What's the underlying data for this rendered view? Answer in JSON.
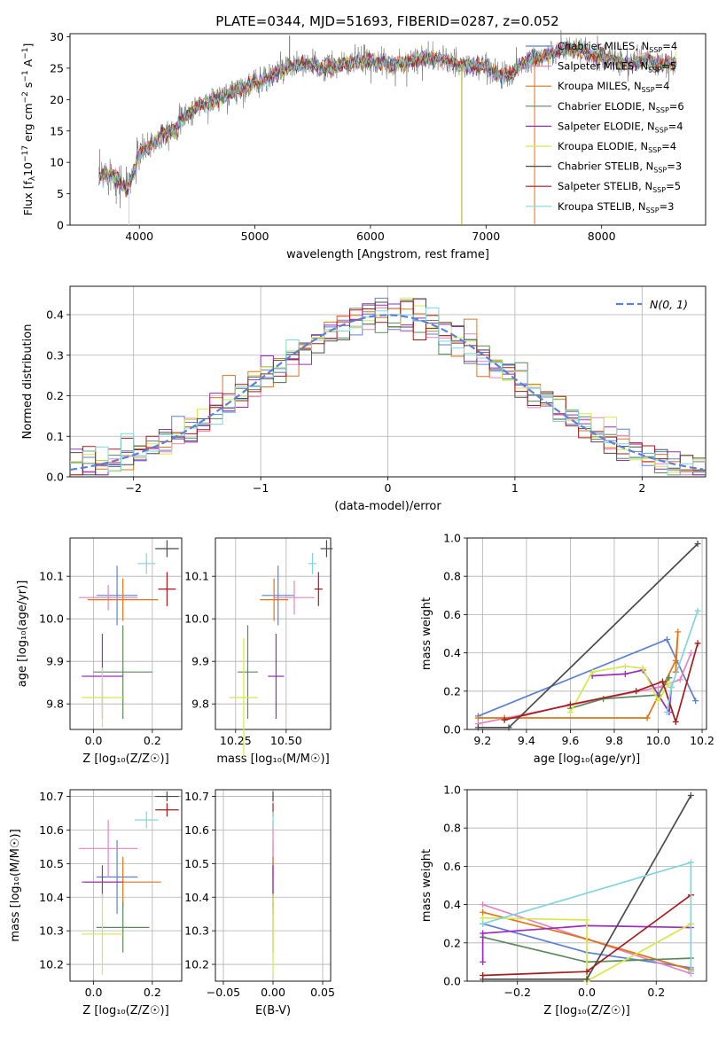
{
  "figure_title": "PLATE=0344, MJD=51693, FIBERID=0287, z=0.052",
  "colors": {
    "Chabrier MILES": "#5b80d8",
    "Salpeter MILES": "#e683c2",
    "Kroupa MILES": "#e07416",
    "Chabrier ELODIE": "#5a8a5a",
    "Salpeter ELODIE": "#9a2cbf",
    "Kroupa ELODIE": "#d4e84a",
    "Chabrier STELIB": "#4a4a4a",
    "Salpeter STELIB": "#aa1a1a",
    "Kroupa STELIB": "#7fd6de",
    "gaussian": "#5b80d8"
  },
  "chart_data": [
    {
      "id": "spectrum",
      "type": "line",
      "title": "",
      "xlabel": "wavelength [Angstrom, rest frame]",
      "ylabel_parts": [
        "Flux [f",
        "λ",
        "10",
        "−17",
        " erg cm",
        "−2",
        " s",
        "−1",
        " A",
        "−1",
        "]"
      ],
      "xlim": [
        3400,
        8900
      ],
      "ylim": [
        0,
        30.5
      ],
      "xticks": [
        4000,
        5000,
        6000,
        7000,
        8000
      ],
      "yticks": [
        0,
        5,
        10,
        15,
        20,
        25,
        30
      ],
      "grid": false,
      "legend_position": "right",
      "continuum_points": [
        [
          3650,
          7.5
        ],
        [
          3700,
          8
        ],
        [
          3750,
          8.4
        ],
        [
          3800,
          7.6
        ],
        [
          3850,
          6.3
        ],
        [
          3900,
          5.8
        ],
        [
          3930,
          7.5
        ],
        [
          3970,
          9.5
        ],
        [
          4000,
          11.5
        ],
        [
          4100,
          12.6
        ],
        [
          4200,
          14.5
        ],
        [
          4300,
          15.2
        ],
        [
          4350,
          16.5
        ],
        [
          4400,
          17.5
        ],
        [
          4500,
          18.8
        ],
        [
          4600,
          19.5
        ],
        [
          4700,
          20.3
        ],
        [
          4800,
          21
        ],
        [
          4900,
          22
        ],
        [
          5000,
          22.7
        ],
        [
          5100,
          23.3
        ],
        [
          5200,
          24.5
        ],
        [
          5300,
          25.2
        ],
        [
          5400,
          25.5
        ],
        [
          5500,
          25.5
        ],
        [
          5600,
          25
        ],
        [
          5700,
          25.3
        ],
        [
          5800,
          25.8
        ],
        [
          5900,
          26.2
        ],
        [
          6000,
          26.3
        ],
        [
          6100,
          25.8
        ],
        [
          6200,
          25.5
        ],
        [
          6300,
          25.8
        ],
        [
          6400,
          26.5
        ],
        [
          6500,
          26.5
        ],
        [
          6600,
          26.5
        ],
        [
          6700,
          25.8
        ],
        [
          6800,
          25.3
        ],
        [
          6900,
          25.5
        ],
        [
          7000,
          25.2
        ],
        [
          7100,
          24
        ],
        [
          7200,
          23.8
        ],
        [
          7300,
          25.5
        ],
        [
          7400,
          26.5
        ],
        [
          7500,
          27
        ],
        [
          7600,
          27.5
        ],
        [
          7700,
          28.2
        ],
        [
          7800,
          27.7
        ],
        [
          7900,
          27.2
        ],
        [
          8000,
          26.8
        ],
        [
          8100,
          26.5
        ],
        [
          8200,
          25.8
        ],
        [
          8300,
          26
        ],
        [
          8400,
          26.2
        ],
        [
          8500,
          25.5
        ],
        [
          8650,
          25.8
        ]
      ],
      "spikes": [
        [
          3910,
          0
        ],
        [
          5300,
          30.2
        ],
        [
          6790,
          0
        ],
        [
          7420,
          0
        ]
      ],
      "series": [
        {
          "name": "Chabrier MILES",
          "nssp": "4"
        },
        {
          "name": "Salpeter MILES",
          "nssp": "5"
        },
        {
          "name": "Kroupa MILES",
          "nssp": "4"
        },
        {
          "name": "Chabrier ELODIE",
          "nssp": "6"
        },
        {
          "name": "Salpeter ELODIE",
          "nssp": "4"
        },
        {
          "name": "Kroupa ELODIE",
          "nssp": "4"
        },
        {
          "name": "Chabrier STELIB",
          "nssp": "3"
        },
        {
          "name": "Salpeter STELIB",
          "nssp": "5"
        },
        {
          "name": "Kroupa STELIB",
          "nssp": "3"
        }
      ]
    },
    {
      "id": "residuals",
      "type": "histogram",
      "xlabel": "(data-model)/error",
      "ylabel": "Normed distribution",
      "xlim": [
        -2.5,
        2.5
      ],
      "ylim": [
        0,
        0.47
      ],
      "xticks": [
        -2,
        -1,
        0,
        1,
        2
      ],
      "yticks": [
        0.0,
        0.1,
        0.2,
        0.3,
        0.4
      ],
      "grid": true,
      "bin_width": 0.1,
      "legend_position": "top-right",
      "gaussian_label": "N(0, 1)"
    },
    {
      "id": "age_vs_Z",
      "type": "errorbar",
      "xlabel": "Z [log₁₀(Z/Z☉)]",
      "ylabel": "age  [log₁₀(age/yr)]",
      "xlim": [
        -0.08,
        0.3
      ],
      "ylim": [
        9.74,
        10.19
      ],
      "xticks": [
        0.0,
        0.2
      ],
      "yticks": [
        9.8,
        9.9,
        10.0,
        10.1
      ],
      "grid": true,
      "points": [
        {
          "series": "Chabrier MILES",
          "x": 0.08,
          "y": 10.055,
          "xerr": 0.07,
          "yerr": 0.07
        },
        {
          "series": "Salpeter MILES",
          "x": 0.05,
          "y": 10.05,
          "xerr": 0.1,
          "yerr": 0.03
        },
        {
          "series": "Kroupa MILES",
          "x": 0.1,
          "y": 10.045,
          "xerr": 0.12,
          "yerr": 0.05
        },
        {
          "series": "Chabrier ELODIE",
          "x": 0.1,
          "y": 9.875,
          "xerr": 0.1,
          "yerr": 0.11
        },
        {
          "series": "Salpeter ELODIE",
          "x": 0.03,
          "y": 9.865,
          "xerr": 0.07,
          "yerr": 0.1
        },
        {
          "series": "Kroupa ELODIE",
          "x": 0.03,
          "y": 9.815,
          "xerr": 0.07,
          "yerr": 0.07
        },
        {
          "series": "Chabrier STELIB",
          "x": 0.25,
          "y": 10.165,
          "xerr": 0.04,
          "yerr": 0.02
        },
        {
          "series": "Salpeter STELIB",
          "x": 0.25,
          "y": 10.07,
          "xerr": 0.03,
          "yerr": 0.04
        },
        {
          "series": "Kroupa STELIB",
          "x": 0.18,
          "y": 10.13,
          "xerr": 0.03,
          "yerr": 0.025
        }
      ]
    },
    {
      "id": "age_vs_mass",
      "type": "errorbar",
      "xlabel": "mass [log₁₀(M/M☉)]",
      "ylabel": "",
      "xlim": [
        10.15,
        10.72
      ],
      "ylim": [
        9.74,
        10.19
      ],
      "xticks": [
        10.25,
        10.5
      ],
      "xticklabels": [
        "10.25",
        "10.50"
      ],
      "yticks": [
        9.8,
        9.9,
        10.0,
        10.1
      ],
      "grid": true,
      "points": [
        {
          "series": "Chabrier MILES",
          "x": 10.46,
          "y": 10.055,
          "xerr": 0.08,
          "yerr": 0.07
        },
        {
          "series": "Salpeter MILES",
          "x": 10.54,
          "y": 10.05,
          "xerr": 0.1,
          "yerr": 0.04
        },
        {
          "series": "Kroupa MILES",
          "x": 10.44,
          "y": 10.045,
          "xerr": 0.07,
          "yerr": 0.05
        },
        {
          "series": "Chabrier ELODIE",
          "x": 10.31,
          "y": 9.875,
          "xerr": 0.05,
          "yerr": 0.11
        },
        {
          "series": "Salpeter ELODIE",
          "x": 10.45,
          "y": 9.865,
          "xerr": 0.04,
          "yerr": 0.1
        },
        {
          "series": "Kroupa ELODIE",
          "x": 10.29,
          "y": 9.815,
          "xerr": 0.07,
          "yerr": 0.14
        },
        {
          "series": "Chabrier STELIB",
          "x": 10.7,
          "y": 10.165,
          "xerr": 0.03,
          "yerr": 0.02
        },
        {
          "series": "Salpeter STELIB",
          "x": 10.66,
          "y": 10.07,
          "xerr": 0.02,
          "yerr": 0.04
        },
        {
          "series": "Kroupa STELIB",
          "x": 10.63,
          "y": 10.13,
          "xerr": 0.02,
          "yerr": 0.025
        }
      ]
    },
    {
      "id": "weight_vs_age",
      "type": "line",
      "xlabel": "age  [log₁₀(age/yr)]",
      "ylabel": "mass weight",
      "xlim": [
        9.13,
        10.22
      ],
      "ylim": [
        0,
        1.0
      ],
      "xticks": [
        9.2,
        9.4,
        9.6,
        9.8,
        10.0,
        10.2
      ],
      "yticks": [
        0.0,
        0.2,
        0.4,
        0.6,
        0.8,
        1.0
      ],
      "grid": true,
      "series": [
        {
          "name": "Chabrier MILES",
          "x": [
            9.18,
            10.04,
            10.17
          ],
          "y": [
            0.07,
            0.47,
            0.15
          ]
        },
        {
          "name": "Salpeter MILES",
          "x": [
            9.18,
            10.0,
            10.1,
            10.15
          ],
          "y": [
            0.03,
            0.22,
            0.26,
            0.4
          ]
        },
        {
          "name": "Kroupa MILES",
          "x": [
            9.18,
            9.3,
            9.95,
            10.08,
            10.09,
            10.08
          ],
          "y": [
            0.06,
            0.06,
            0.06,
            0.36,
            0.51,
            0.3
          ]
        },
        {
          "name": "Chabrier ELODIE",
          "x": [
            9.6,
            9.75,
            10.0,
            10.05
          ],
          "y": [
            0.11,
            0.16,
            0.18,
            0.27
          ]
        },
        {
          "name": "Salpeter ELODIE",
          "x": [
            9.7,
            9.85,
            9.93,
            10.05,
            10.06
          ],
          "y": [
            0.28,
            0.29,
            0.31,
            0.09,
            0.22
          ]
        },
        {
          "name": "Kroupa ELODIE",
          "x": [
            9.6,
            9.7,
            9.85,
            9.93,
            10.0,
            10.05
          ],
          "y": [
            0.09,
            0.3,
            0.33,
            0.32,
            0.15,
            0.24
          ]
        },
        {
          "name": "Chabrier STELIB",
          "x": [
            9.18,
            9.32,
            10.18
          ],
          "y": [
            0.01,
            0.01,
            0.97
          ]
        },
        {
          "name": "Salpeter STELIB",
          "x": [
            9.3,
            9.6,
            9.9,
            10.02,
            10.08,
            10.18
          ],
          "y": [
            0.05,
            0.13,
            0.2,
            0.25,
            0.04,
            0.45
          ]
        },
        {
          "name": "Kroupa STELIB",
          "x": [
            10.04,
            10.06,
            10.18
          ],
          "y": [
            0.09,
            0.22,
            0.62
          ]
        }
      ]
    },
    {
      "id": "mass_vs_Z",
      "type": "errorbar",
      "xlabel": "Z [log₁₀(Z/Z☉)]",
      "ylabel": "mass [log₁₀(M/M☉)]",
      "xlim": [
        -0.08,
        0.3
      ],
      "ylim": [
        10.15,
        10.72
      ],
      "xticks": [
        0.0,
        0.2
      ],
      "yticks": [
        10.2,
        10.3,
        10.4,
        10.5,
        10.6,
        10.7
      ],
      "grid": true,
      "points": [
        {
          "series": "Chabrier MILES",
          "x": 0.08,
          "y": 10.46,
          "xerr": 0.07,
          "yerr": 0.11
        },
        {
          "series": "Salpeter MILES",
          "x": 0.05,
          "y": 10.545,
          "xerr": 0.1,
          "yerr": 0.085
        },
        {
          "series": "Kroupa MILES",
          "x": 0.1,
          "y": 10.445,
          "xerr": 0.13,
          "yerr": 0.075
        },
        {
          "series": "Chabrier ELODIE",
          "x": 0.1,
          "y": 10.31,
          "xerr": 0.09,
          "yerr": 0.075
        },
        {
          "series": "Salpeter ELODIE",
          "x": 0.03,
          "y": 10.445,
          "xerr": 0.07,
          "yerr": 0.05
        },
        {
          "series": "Kroupa ELODIE",
          "x": 0.03,
          "y": 10.29,
          "xerr": 0.07,
          "yerr": 0.12
        },
        {
          "series": "Chabrier STELIB",
          "x": 0.25,
          "y": 10.7,
          "xerr": 0.04,
          "yerr": 0.015
        },
        {
          "series": "Salpeter STELIB",
          "x": 0.25,
          "y": 10.66,
          "xerr": 0.04,
          "yerr": 0.02
        },
        {
          "series": "Kroupa STELIB",
          "x": 0.18,
          "y": 10.63,
          "xerr": 0.04,
          "yerr": 0.025
        }
      ]
    },
    {
      "id": "mass_vs_ebv",
      "type": "errorbar",
      "xlabel": "E(B-V)",
      "ylabel": "",
      "xlim": [
        -0.058,
        0.058
      ],
      "ylim": [
        10.15,
        10.72
      ],
      "xticks": [
        -0.05,
        0.0,
        0.05
      ],
      "xticklabels": [
        "−0.05",
        "0.00",
        "0.05"
      ],
      "yticks": [
        10.2,
        10.3,
        10.4,
        10.5,
        10.6,
        10.7
      ],
      "grid": true,
      "points": [
        {
          "series": "Chabrier MILES",
          "x": 0,
          "y": 10.46,
          "xerr": 0,
          "yerr": 0.11
        },
        {
          "series": "Salpeter MILES",
          "x": 0,
          "y": 10.545,
          "xerr": 0,
          "yerr": 0.085
        },
        {
          "series": "Kroupa MILES",
          "x": 0,
          "y": 10.445,
          "xerr": 0,
          "yerr": 0.075
        },
        {
          "series": "Chabrier ELODIE",
          "x": 0,
          "y": 10.31,
          "xerr": 0,
          "yerr": 0.075
        },
        {
          "series": "Salpeter ELODIE",
          "x": 0,
          "y": 10.445,
          "xerr": 0,
          "yerr": 0.05
        },
        {
          "series": "Kroupa ELODIE",
          "x": 0,
          "y": 10.29,
          "xerr": 0,
          "yerr": 0.12
        },
        {
          "series": "Chabrier STELIB",
          "x": 0,
          "y": 10.7,
          "xerr": 0,
          "yerr": 0.015
        },
        {
          "series": "Salpeter STELIB",
          "x": 0,
          "y": 10.66,
          "xerr": 0,
          "yerr": 0.02
        },
        {
          "series": "Kroupa STELIB",
          "x": 0,
          "y": 10.63,
          "xerr": 0,
          "yerr": 0.025
        }
      ]
    },
    {
      "id": "weight_vs_Z",
      "type": "line",
      "xlabel": "Z [log₁₀(Z/Z☉)]",
      "ylabel": "mass weight",
      "xlim": [
        -0.345,
        0.345
      ],
      "ylim": [
        0,
        1.0
      ],
      "xticks": [
        -0.2,
        0.0,
        0.2
      ],
      "xticklabels": [
        "−0.2",
        "0.0",
        "0.2"
      ],
      "yticks": [
        0.0,
        0.2,
        0.4,
        0.6,
        0.8,
        1.0
      ],
      "grid": true,
      "series": [
        {
          "name": "Chabrier MILES",
          "x": [
            -0.3,
            0.0,
            0.3
          ],
          "y": [
            0.3,
            0.15,
            0.07
          ]
        },
        {
          "name": "Salpeter MILES",
          "x": [
            -0.3,
            0.0,
            0.3
          ],
          "y": [
            0.4,
            0.22,
            0.04
          ]
        },
        {
          "name": "Kroupa MILES",
          "x": [
            -0.3,
            0.0,
            0.3
          ],
          "y": [
            0.36,
            0.22,
            0.06
          ]
        },
        {
          "name": "Chabrier ELODIE",
          "x": [
            -0.3,
            0.0,
            0.3
          ],
          "y": [
            0.23,
            0.1,
            0.12
          ]
        },
        {
          "name": "Salpeter ELODIE",
          "x": [
            -0.3,
            -0.3,
            0.0,
            0.3
          ],
          "y": [
            0.1,
            0.25,
            0.29,
            0.28
          ]
        },
        {
          "name": "Kroupa ELODIE",
          "x": [
            -0.3,
            0.0,
            0.0,
            0.3
          ],
          "y": [
            0.33,
            0.32,
            0.0,
            0.3
          ]
        },
        {
          "name": "Chabrier STELIB",
          "x": [
            -0.3,
            0.0,
            0.3
          ],
          "y": [
            0.01,
            0.01,
            0.97
          ]
        },
        {
          "name": "Salpeter STELIB",
          "x": [
            -0.3,
            0.0,
            0.3
          ],
          "y": [
            0.03,
            0.05,
            0.45
          ]
        },
        {
          "name": "Kroupa STELIB",
          "x": [
            -0.3,
            0.3,
            0.3
          ],
          "y": [
            0.3,
            0.62,
            0.05
          ]
        }
      ]
    }
  ]
}
